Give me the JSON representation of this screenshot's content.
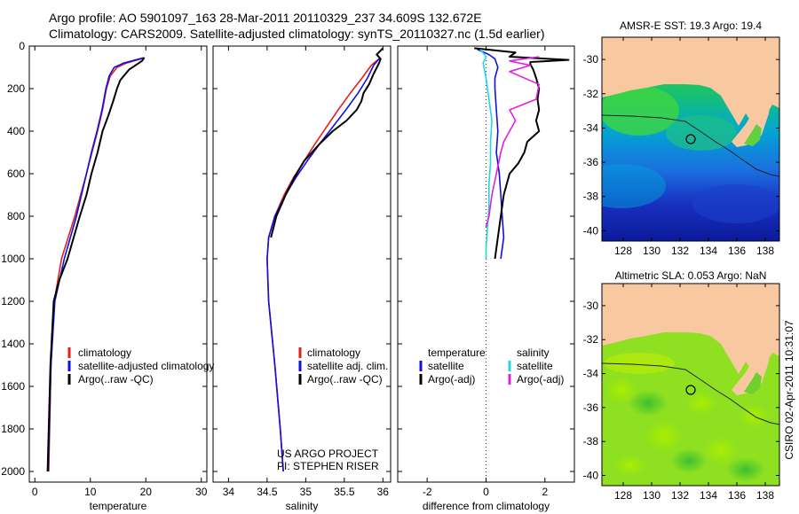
{
  "header": {
    "line1": "Argo profile: AO 5901097_163 28-Mar-2011 20110329_237 34.609S 132.672E",
    "line2": "Climatology: CARS2009. Satellite-adjusted climatology: synTS_20110327.nc (1.5d earlier)"
  },
  "credits": {
    "project": "US ARGO PROJECT",
    "pi": "PI: STEPHEN RISER",
    "stamp": "CSIRO 02-Apr-2011 10:31:07"
  },
  "colors": {
    "climatology": "#e02020",
    "satellite": "#1010e0",
    "argo": "#000000",
    "sal_satellite": "#20d8e0",
    "sal_argo": "#e020e0",
    "land": "#f8c8a0"
  },
  "chart_data": [
    {
      "type": "line",
      "xlabel": "temperature",
      "xlim": [
        -1,
        31
      ],
      "ylim": [
        2050,
        0
      ],
      "xticks": [
        0,
        10,
        20,
        30
      ],
      "yticks": [
        0,
        200,
        400,
        600,
        800,
        1000,
        1200,
        1400,
        1600,
        1800,
        2000
      ],
      "legend": [
        "climatology",
        "satellite-adjusted climatology",
        "Argo(..raw -QC)"
      ],
      "legend_placement": "lower-right",
      "series": [
        {
          "name": "climatology",
          "color": "#e02020",
          "depth": [
            55,
            80,
            100,
            140,
            200,
            300,
            400,
            500,
            600,
            800,
            1000,
            1200,
            1500,
            2000
          ],
          "values": [
            19.8,
            16.5,
            14.8,
            13.6,
            12.9,
            12.2,
            11.3,
            10.3,
            9.3,
            7.2,
            4.8,
            3.5,
            2.9,
            2.5
          ]
        },
        {
          "name": "satellite-adjusted climatology",
          "color": "#1010e0",
          "depth": [
            55,
            80,
            100,
            140,
            200,
            300,
            400,
            500,
            600,
            800,
            1000,
            1200,
            1500,
            2000
          ],
          "values": [
            19.6,
            16.0,
            14.3,
            13.4,
            12.8,
            12.1,
            11.2,
            10.2,
            9.3,
            7.5,
            5.3,
            3.6,
            2.9,
            2.4
          ]
        },
        {
          "name": "Argo(..raw -QC)",
          "color": "#000000",
          "depth": [
            55,
            70,
            110,
            160,
            200,
            260,
            330,
            400,
            500,
            600,
            700,
            800,
            900,
            1000,
            1100,
            1200,
            1500,
            2000
          ],
          "values": [
            19.7,
            19.3,
            17.0,
            15.4,
            14.8,
            14.1,
            13.2,
            12.2,
            11.3,
            10.2,
            9.3,
            8.1,
            7.0,
            5.9,
            4.4,
            3.4,
            2.8,
            2.3
          ]
        }
      ]
    },
    {
      "type": "line",
      "xlabel": "salinity",
      "xlim": [
        33.8,
        36.1
      ],
      "ylim": [
        2050,
        0
      ],
      "xticks": [
        34,
        34.5,
        35,
        35.5,
        36
      ],
      "xticklabels": [
        "34",
        "34.5",
        "35",
        "35.5",
        "36"
      ],
      "legend": [
        "climatology",
        "satellite adj. clim.",
        "Argo(..raw -QC)"
      ],
      "legend_placement": "lower-right",
      "series": [
        {
          "name": "climatology",
          "color": "#e02020",
          "depth": [
            60,
            90,
            150,
            220,
            300,
            380,
            460,
            540,
            620,
            700,
            800,
            900,
            1000,
            1200,
            1500,
            1800,
            2000
          ],
          "values": [
            35.95,
            35.85,
            35.73,
            35.58,
            35.42,
            35.27,
            35.12,
            34.98,
            34.84,
            34.72,
            34.6,
            34.52,
            34.5,
            34.52,
            34.6,
            34.67,
            34.71
          ]
        },
        {
          "name": "satellite adj. clim.",
          "color": "#1010e0",
          "depth": [
            60,
            90,
            150,
            220,
            300,
            380,
            460,
            540,
            620,
            700,
            800,
            900,
            1000,
            1200,
            1500,
            1800,
            2000
          ],
          "values": [
            35.95,
            35.88,
            35.8,
            35.68,
            35.52,
            35.35,
            35.18,
            35.02,
            34.87,
            34.74,
            34.6,
            34.52,
            34.5,
            34.52,
            34.6,
            34.67,
            34.71
          ]
        },
        {
          "name": "Argo(..raw -QC)",
          "color": "#000000",
          "depth": [
            10,
            40,
            60,
            80,
            130,
            180,
            220,
            260,
            300,
            350,
            400,
            460,
            540,
            620,
            700,
            800,
            900
          ],
          "values": [
            36.0,
            35.92,
            35.97,
            35.95,
            35.88,
            35.82,
            35.75,
            35.72,
            35.66,
            35.53,
            35.35,
            35.18,
            34.98,
            34.85,
            34.74,
            34.62,
            34.55
          ]
        }
      ]
    },
    {
      "type": "line",
      "xlabel": "difference from climatology",
      "xlim": [
        -3,
        3
      ],
      "ylim": [
        2050,
        0
      ],
      "xticks": [
        -2,
        0,
        2
      ],
      "zero_line": "dotted",
      "legend": [
        "temperature",
        "satellite",
        "Argo(-adj)",
        "salinity",
        "satellite",
        "Argo(-adj)"
      ],
      "legend_placement": "lower-center",
      "series": [
        {
          "name": "temperature satellite",
          "color": "#1010e0",
          "depth": [
            15,
            40,
            60,
            100,
            150,
            200,
            300,
            400,
            500,
            600,
            700,
            800,
            900,
            1000
          ],
          "values": [
            -0.3,
            0.1,
            0.3,
            0.4,
            0.3,
            0.3,
            0.35,
            0.4,
            0.35,
            0.45,
            0.5,
            0.55,
            0.6,
            0.5
          ]
        },
        {
          "name": "temperature Argo(-adj)",
          "color": "#000000",
          "depth": [
            10,
            30,
            50,
            65,
            75,
            85,
            110,
            150,
            200,
            250,
            300,
            350,
            400,
            450,
            500,
            550,
            600,
            700,
            800,
            900,
            1000
          ],
          "values": [
            -0.4,
            1.0,
            0.8,
            2.8,
            1.5,
            1.5,
            1.6,
            1.7,
            1.8,
            1.75,
            1.8,
            1.7,
            1.8,
            1.4,
            1.3,
            1.1,
            0.8,
            0.6,
            0.5,
            0.4,
            0.3
          ]
        },
        {
          "name": "salinity satellite",
          "color": "#20d8e0",
          "depth": [
            15,
            50,
            80,
            150,
            250,
            350,
            450,
            550,
            650,
            750,
            850,
            950,
            1000
          ],
          "values": [
            -0.2,
            0.0,
            -0.1,
            0.0,
            0.1,
            0.2,
            0.15,
            0.15,
            0.1,
            0.1,
            0.05,
            0.0,
            0.0
          ]
        },
        {
          "name": "salinity Argo(-adj)",
          "color": "#e020e0",
          "depth": [
            50,
            70,
            90,
            120,
            180,
            250,
            300,
            350,
            400,
            450,
            500,
            600,
            700,
            800,
            850
          ],
          "values": [
            1.8,
            0.8,
            1.5,
            0.8,
            1.8,
            1.7,
            0.8,
            1.0,
            0.8,
            0.6,
            0.5,
            0.35,
            0.2,
            0.1,
            0.0
          ]
        }
      ]
    },
    {
      "type": "heatmap",
      "title": "AMSR-E SST: 19.3 Argo: 19.4",
      "xlim": [
        126.5,
        139
      ],
      "ylim": [
        -40.6,
        -28.7
      ],
      "xticks": [
        128,
        130,
        132,
        134,
        136,
        138
      ],
      "yticks": [
        -30,
        -32,
        -34,
        -36,
        -38,
        -40
      ],
      "marker": {
        "lon": 132.672,
        "lat": -34.609
      }
    },
    {
      "type": "heatmap",
      "title": "Altimetric SLA: 0.053 Argo: NaN",
      "xlim": [
        126.5,
        139
      ],
      "ylim": [
        -40.6,
        -28.7
      ],
      "xticks": [
        128,
        130,
        132,
        134,
        136,
        138
      ],
      "yticks": [
        -30,
        -32,
        -34,
        -36,
        -38,
        -40
      ],
      "marker": {
        "lon": 132.672,
        "lat": -34.609
      }
    }
  ]
}
